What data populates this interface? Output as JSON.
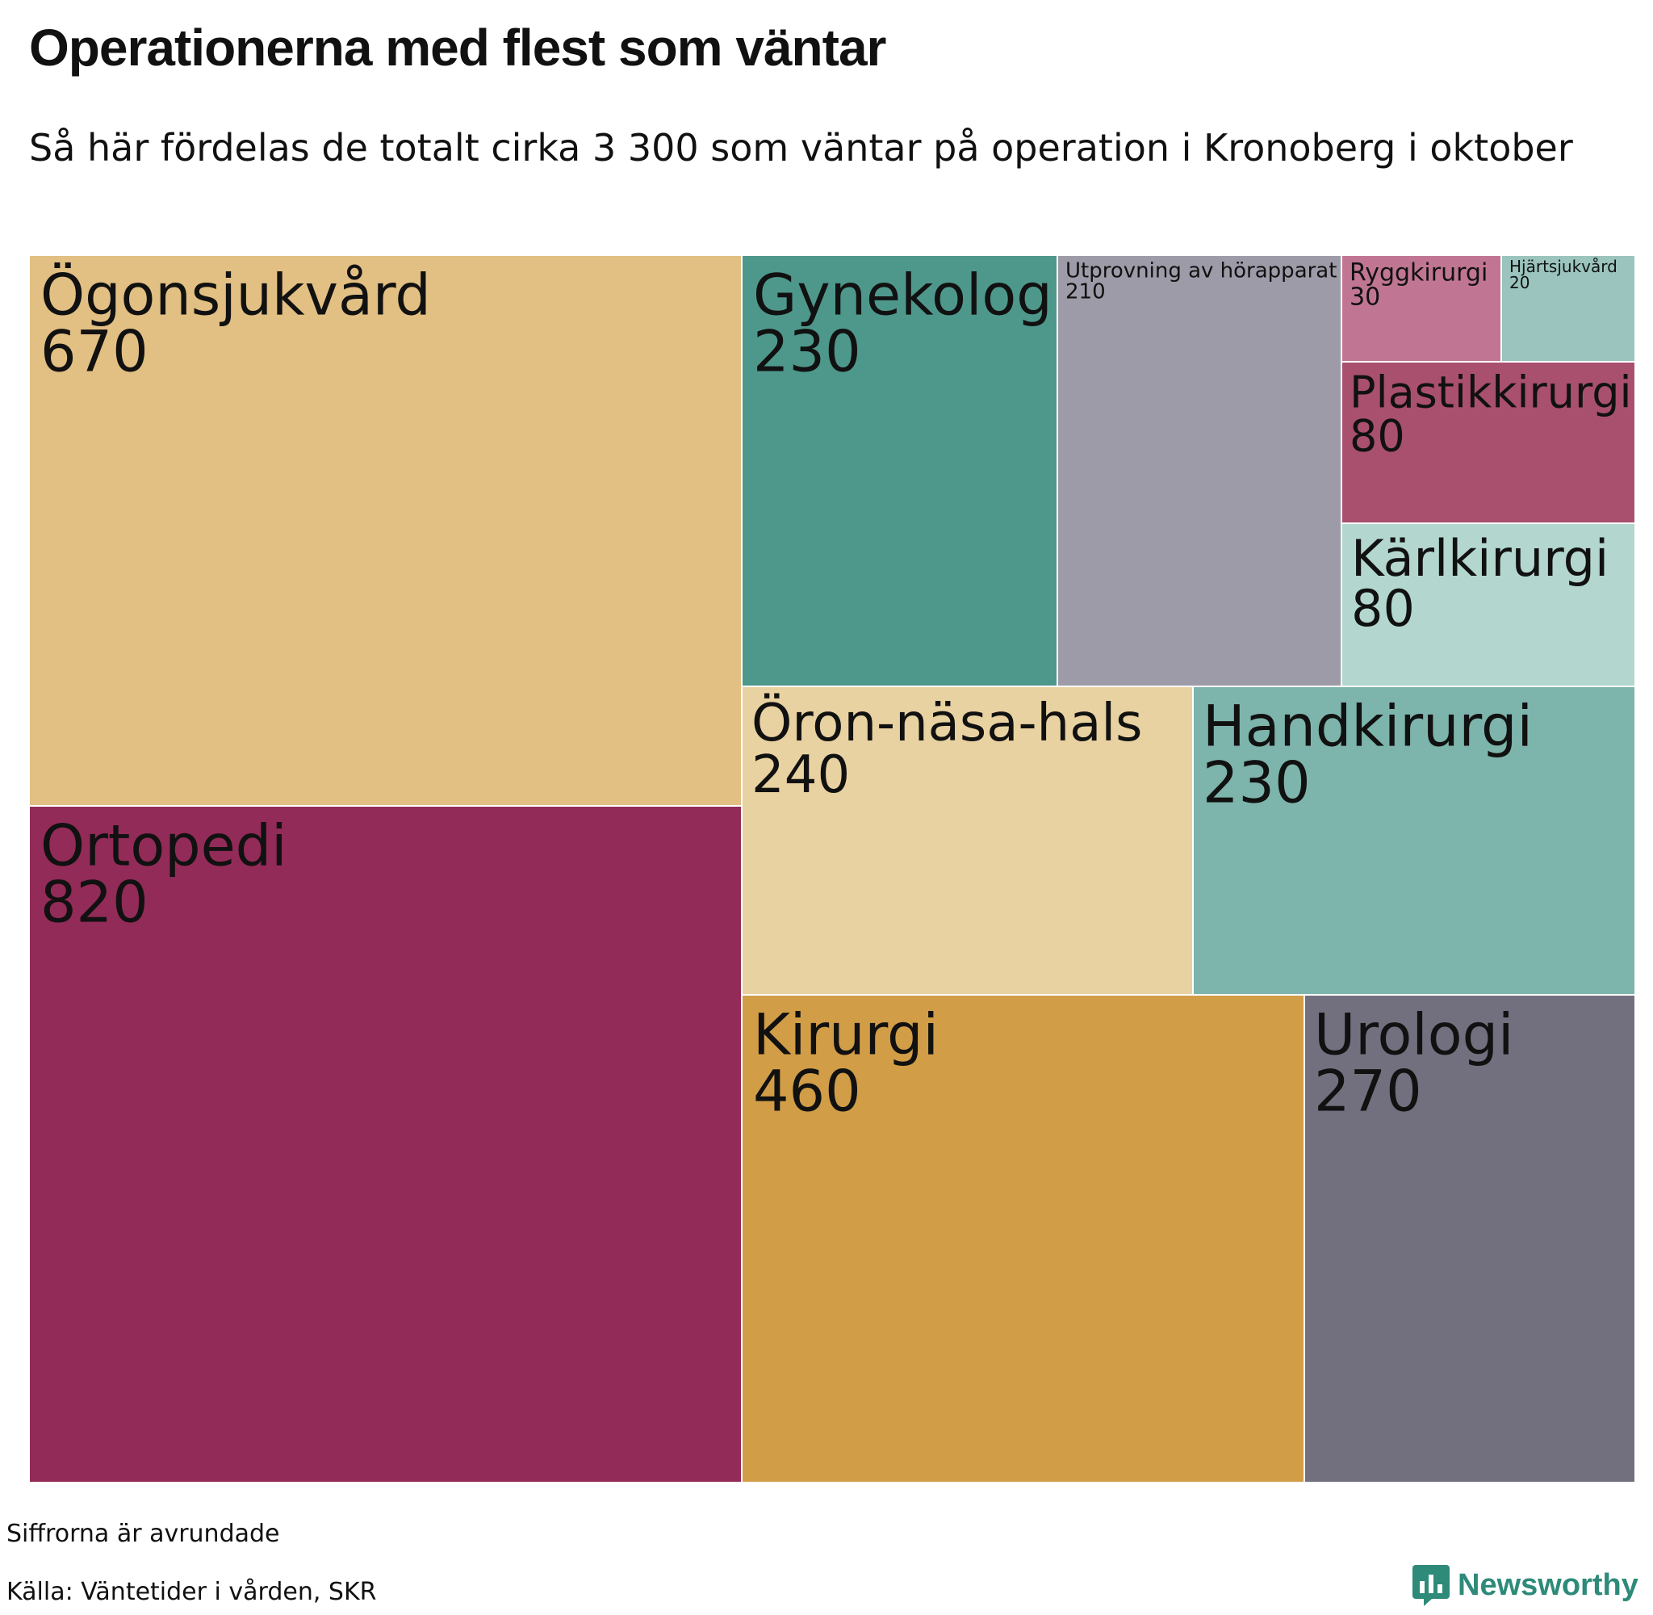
{
  "title": "Operationerna med flest som väntar",
  "subtitle": "Så här fördelas de totalt cirka 3 300 som väntar på operation i Kronoberg i oktober",
  "note": "Siffrorna är avrundade",
  "source": "Källa: Väntetider i vården, SKR",
  "brand": {
    "name": "Newsworthy",
    "icon": "newsworthy-logo-icon",
    "color": "#2e8a79"
  },
  "chart_data": {
    "type": "treemap",
    "title": "Operationerna med flest som väntar",
    "subtitle": "Så här fördelas de totalt cirka 3 300 som väntar på operation i Kronoberg i oktober",
    "items": [
      {
        "name": "Ortopedi",
        "value": 820,
        "color": "#922b57"
      },
      {
        "name": "Ögonsjukvård",
        "value": 670,
        "color": "#e2bf82"
      },
      {
        "name": "Kirurgi",
        "value": 460,
        "color": "#d19d47"
      },
      {
        "name": "Urologi",
        "value": 270,
        "color": "#72707e"
      },
      {
        "name": "Öron-näsa-hals",
        "value": 240,
        "color": "#e9d2a1"
      },
      {
        "name": "Handkirurgi",
        "value": 230,
        "color": "#7db4ac"
      },
      {
        "name": "Gynekologi",
        "value": 230,
        "color": "#4e988b"
      },
      {
        "name": "Utprovning av hörapparat",
        "value": 210,
        "color": "#9d9ba8"
      },
      {
        "name": "Plastikkirurgi",
        "value": 80,
        "color": "#a9506f"
      },
      {
        "name": "Kärlkirurgi",
        "value": 80,
        "color": "#b3d7cf"
      },
      {
        "name": "Ryggkirurgi",
        "value": 30,
        "color": "#c07692"
      },
      {
        "name": "Hjärtsjukvård",
        "value": 20,
        "color": "#9ac4bd"
      }
    ]
  }
}
